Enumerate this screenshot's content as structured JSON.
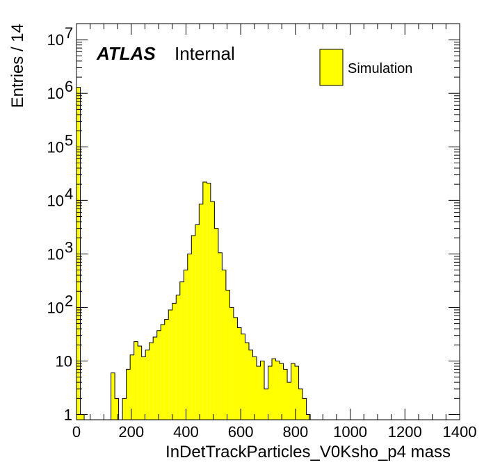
{
  "chart_data": {
    "type": "bar",
    "style": "histogram",
    "log_y": true,
    "xlabel": "InDetTrackParticles_V0Ksho_p4 mass",
    "ylabel": "Entries / 14",
    "xlim": [
      0,
      1400
    ],
    "ylim": [
      0.8,
      20000000
    ],
    "bin_width": 14,
    "x_tick_labels": [
      "0",
      "200",
      "400",
      "600",
      "800",
      "1000",
      "1200",
      "1400"
    ],
    "y_tick_labels": [
      {
        "value": 1,
        "base": "1",
        "exp": ""
      },
      {
        "value": 10,
        "base": "10",
        "exp": ""
      },
      {
        "value": 100,
        "base": "10",
        "exp": "2"
      },
      {
        "value": 1000,
        "base": "10",
        "exp": "3"
      },
      {
        "value": 10000,
        "base": "10",
        "exp": "4"
      },
      {
        "value": 100000,
        "base": "10",
        "exp": "5"
      },
      {
        "value": 1000000,
        "base": "10",
        "exp": "6"
      },
      {
        "value": 10000000,
        "base": "10",
        "exp": "7"
      }
    ],
    "experiment_label": "ATLAS",
    "status_label": "Internal",
    "legend": {
      "entries": [
        "Simulation"
      ],
      "placement": "top-right"
    },
    "fill_color": "#ffff00",
    "series": [
      {
        "name": "Simulation",
        "x": [
          0,
          14,
          126,
          140,
          168,
          182,
          196,
          210,
          224,
          238,
          252,
          266,
          280,
          294,
          308,
          322,
          336,
          350,
          364,
          378,
          392,
          406,
          420,
          434,
          448,
          462,
          476,
          490,
          504,
          518,
          532,
          546,
          560,
          574,
          588,
          602,
          616,
          630,
          644,
          658,
          672,
          686,
          700,
          714,
          728,
          742,
          756,
          770,
          784,
          798,
          812,
          826,
          840
        ],
        "values": [
          1300000,
          1,
          6,
          2,
          2,
          7,
          13,
          23,
          19,
          12,
          16,
          22,
          28,
          37,
          48,
          60,
          90,
          120,
          170,
          300,
          500,
          1000,
          2200,
          3500,
          8500,
          22000,
          21000,
          9500,
          3000,
          1050,
          500,
          210,
          100,
          65,
          42,
          32,
          22,
          16,
          12,
          8,
          10,
          3,
          8,
          11,
          10,
          9,
          7,
          4,
          9,
          8,
          3,
          2,
          1
        ]
      }
    ]
  }
}
